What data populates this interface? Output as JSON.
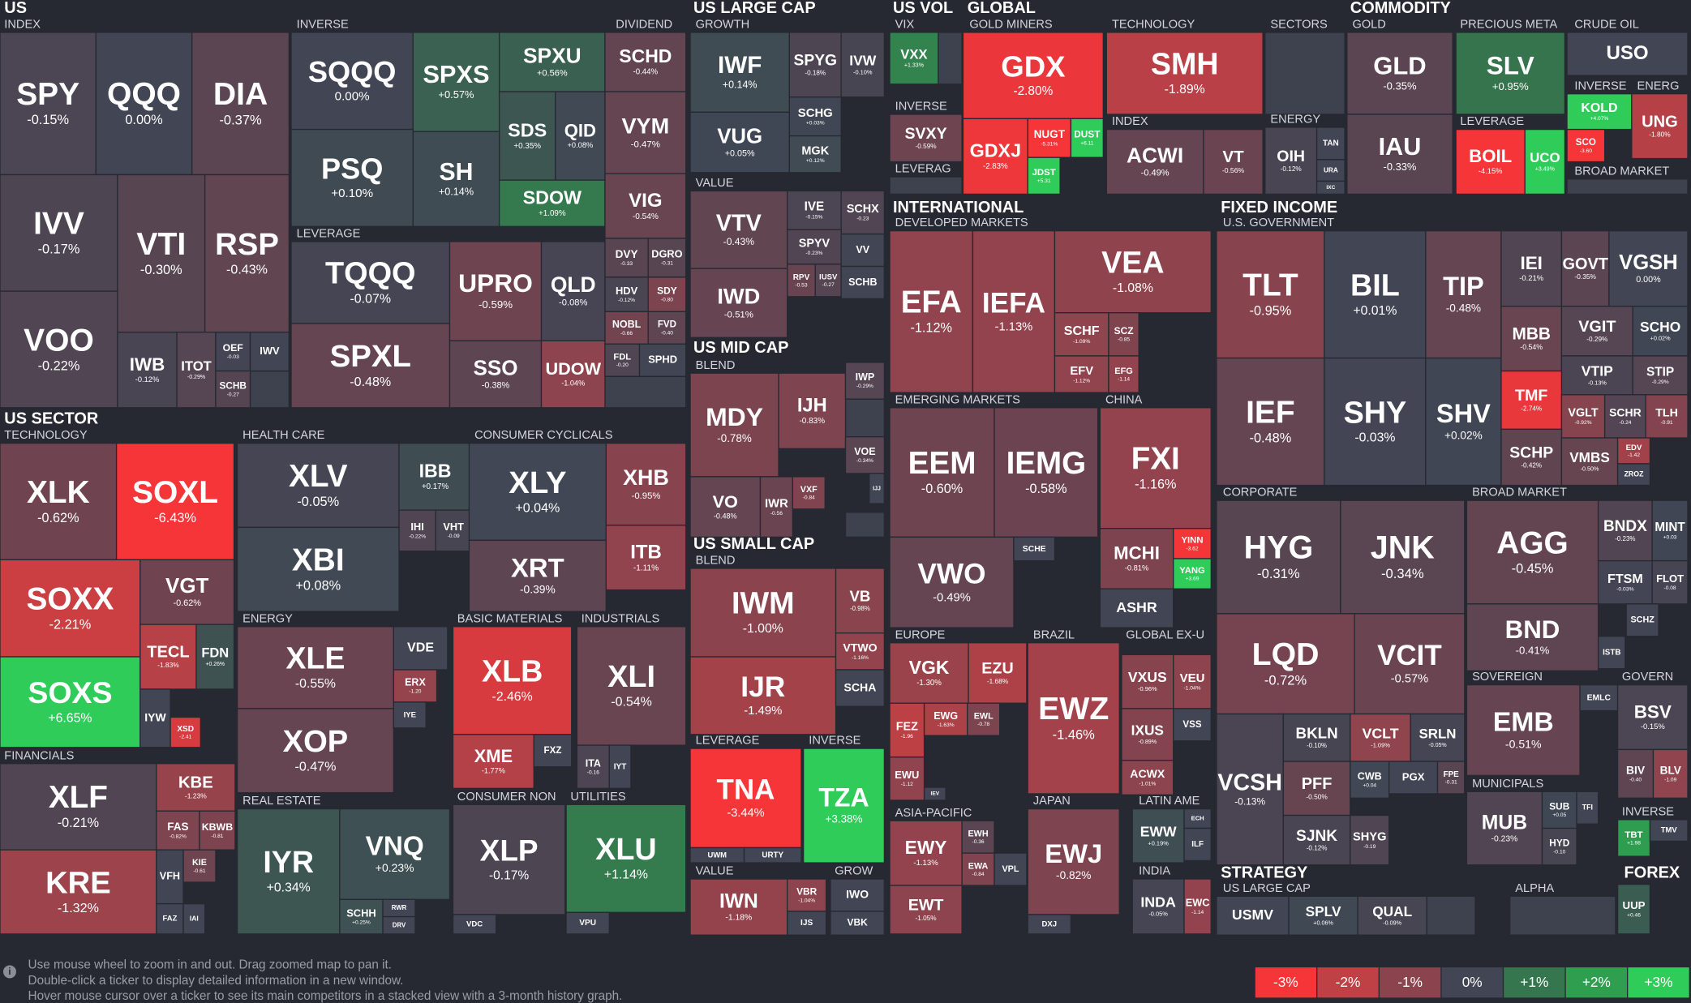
{
  "labels": [
    "US",
    "INDEX",
    "INVERSE",
    "LEVERAGE",
    "DIVIDEND",
    "US LARGE CAP",
    "GROWTH",
    "VALUE",
    "US MID CAP",
    "BLEND",
    "US SMALL CAP",
    "BLEND",
    "LEVERAGE",
    "INVERSE",
    "VALUE",
    "GROW",
    "US VOL",
    "VIX",
    "INVERSE",
    "LEVERAG",
    "GLOBAL",
    "GOLD MINERS",
    "TECHNOLOGY",
    "INDEX",
    "SECTORS",
    "ENERGY",
    "COMMODITY",
    "GOLD",
    "PRECIOUS META",
    "CRUDE OIL",
    "INVERSE",
    "ENERG",
    "LEVERAGE",
    "BROAD MARKET",
    "INTERNATIONAL",
    "DEVELOPED MARKETS",
    "EMERGING MARKETS",
    "CHINA",
    "EUROPE",
    "BRAZIL",
    "GLOBAL EX-U",
    "ASIA-PACIFIC",
    "JAPAN",
    "LATIN AME",
    "INDIA",
    "FIXED INCOME",
    "U.S. GOVERNMENT",
    "CORPORATE",
    "BROAD MARKET",
    "SOVEREIGN",
    "GOVERN",
    "MUNICIPALS",
    "INVERSE",
    "STRATEGY",
    "US LARGE CAP",
    "ALPHA",
    "FOREX",
    "US SECTOR",
    "TECHNOLOGY",
    "FINANCIALS",
    "HEALTH CARE",
    "ENERGY",
    "REAL ESTATE",
    "CONSUMER CYCLICALS",
    "BASIC MATERIALS",
    "INDUSTRIALS",
    "CONSUMER NON",
    "UTILITIES"
  ],
  "tiles": [
    {
      "ticker": "SPY",
      "change": "-0.15%"
    },
    {
      "ticker": "QQQ",
      "change": "0.00%"
    },
    {
      "ticker": "DIA",
      "change": "-0.37%"
    },
    {
      "ticker": "IVV",
      "change": "-0.17%"
    },
    {
      "ticker": "VTI",
      "change": "-0.30%"
    },
    {
      "ticker": "RSP",
      "change": "-0.43%"
    },
    {
      "ticker": "VOO",
      "change": "-0.22%"
    },
    {
      "ticker": "IWB",
      "change": "-0.12%"
    },
    {
      "ticker": "ITOT",
      "change": "-0.29%"
    },
    {
      "ticker": "OEF",
      "change": "-0.03"
    },
    {
      "ticker": "IWV"
    },
    {
      "ticker": "SCHB",
      "change": "-0.27"
    },
    {
      "ticker": "SQQQ",
      "change": "0.00%"
    },
    {
      "ticker": "SPXS",
      "change": "+0.57%"
    },
    {
      "ticker": "SPXU",
      "change": "+0.56%"
    },
    {
      "ticker": "SDS",
      "change": "+0.35%"
    },
    {
      "ticker": "QID",
      "change": "+0.08%"
    },
    {
      "ticker": "PSQ",
      "change": "+0.10%"
    },
    {
      "ticker": "SH",
      "change": "+0.14%"
    },
    {
      "ticker": "SDOW",
      "change": "+1.09%"
    },
    {
      "ticker": "TQQQ",
      "change": "-0.07%"
    },
    {
      "ticker": "SPXL",
      "change": "-0.48%"
    },
    {
      "ticker": "UPRO",
      "change": "-0.59%"
    },
    {
      "ticker": "QLD",
      "change": "-0.08%"
    },
    {
      "ticker": "SSO",
      "change": "-0.38%"
    },
    {
      "ticker": "UDOW",
      "change": "-1.04%"
    },
    {
      "ticker": "SCHD",
      "change": "-0.44%"
    },
    {
      "ticker": "VYM",
      "change": "-0.47%"
    },
    {
      "ticker": "VIG",
      "change": "-0.54%"
    },
    {
      "ticker": "DVY",
      "change": "-0.33"
    },
    {
      "ticker": "DGRO",
      "change": "-0.31"
    },
    {
      "ticker": "HDV",
      "change": "-0.12%"
    },
    {
      "ticker": "SDY",
      "change": "-0.80"
    },
    {
      "ticker": "NOBL",
      "change": "-0.66"
    },
    {
      "ticker": "FVD",
      "change": "-0.40"
    },
    {
      "ticker": "FDL",
      "change": "-0.20"
    },
    {
      "ticker": "SPHD"
    },
    {
      "ticker": "IWF",
      "change": "+0.14%"
    },
    {
      "ticker": "SPYG",
      "change": "-0.18%"
    },
    {
      "ticker": "IVW",
      "change": "-0.10%"
    },
    {
      "ticker": "VUG",
      "change": "+0.05%"
    },
    {
      "ticker": "SCHG",
      "change": "+0.03%"
    },
    {
      "ticker": "MGK",
      "change": "+0.12%"
    },
    {
      "ticker": "VTV",
      "change": "-0.43%"
    },
    {
      "ticker": "IVE",
      "change": "-0.15%"
    },
    {
      "ticker": "SCHX",
      "change": "-0.23"
    },
    {
      "ticker": "SPYV",
      "change": "-0.23%"
    },
    {
      "ticker": "VV"
    },
    {
      "ticker": "RPV",
      "change": "-0.53"
    },
    {
      "ticker": "IUSV",
      "change": "-0.27"
    },
    {
      "ticker": "SCHB"
    },
    {
      "ticker": "IWD",
      "change": "-0.51%"
    },
    {
      "ticker": "MDY",
      "change": "-0.78%"
    },
    {
      "ticker": "IJH",
      "change": "-0.83%"
    },
    {
      "ticker": "IWP",
      "change": "-0.29%"
    },
    {
      "ticker": "VO",
      "change": "-0.48%"
    },
    {
      "ticker": "IWR",
      "change": "-0.56"
    },
    {
      "ticker": "VXF",
      "change": "-0.84"
    },
    {
      "ticker": "VOE",
      "change": "-0.34%"
    },
    {
      "ticker": "IJJ"
    },
    {
      "ticker": "IWM",
      "change": "-1.00%"
    },
    {
      "ticker": "VB",
      "change": "-0.98%"
    },
    {
      "ticker": "IJR",
      "change": "-1.49%"
    },
    {
      "ticker": "VTWO",
      "change": "-1.16%"
    },
    {
      "ticker": "SCHA"
    },
    {
      "ticker": "TNA",
      "change": "-3.44%"
    },
    {
      "ticker": "UWM"
    },
    {
      "ticker": "URTY"
    },
    {
      "ticker": "TZA",
      "change": "+3.38%"
    },
    {
      "ticker": "IWN",
      "change": "-1.18%"
    },
    {
      "ticker": "VBR",
      "change": "-1.04%"
    },
    {
      "ticker": "IJS"
    },
    {
      "ticker": "IWO"
    },
    {
      "ticker": "VBK"
    },
    {
      "ticker": "VXX",
      "change": "+1.33%"
    },
    {
      "ticker": "SVXY",
      "change": "-0.59%"
    },
    {
      "ticker": "GDX",
      "change": "-2.80%"
    },
    {
      "ticker": "GDXJ",
      "change": "-2.83%"
    },
    {
      "ticker": "NUGT",
      "change": "-5.31%"
    },
    {
      "ticker": "DUST",
      "change": "+6.11"
    },
    {
      "ticker": "JDST",
      "change": "+5.31"
    },
    {
      "ticker": "SMH",
      "change": "-1.89%"
    },
    {
      "ticker": "ACWI",
      "change": "-0.49%"
    },
    {
      "ticker": "VT",
      "change": "-0.56%"
    },
    {
      "ticker": "OIH",
      "change": "-0.12%"
    },
    {
      "ticker": "TAN"
    },
    {
      "ticker": "URA"
    },
    {
      "ticker": "IXC"
    },
    {
      "ticker": "GLD",
      "change": "-0.35%"
    },
    {
      "ticker": "IAU",
      "change": "-0.33%"
    },
    {
      "ticker": "SLV",
      "change": "+0.95%"
    },
    {
      "ticker": "BOIL",
      "change": "-4.15%"
    },
    {
      "ticker": "UCO",
      "change": "+3.49%"
    },
    {
      "ticker": "USO"
    },
    {
      "ticker": "KOLD",
      "change": "+4.07%"
    },
    {
      "ticker": "UNG",
      "change": "-1.80%"
    },
    {
      "ticker": "SCO",
      "change": "-3.60"
    },
    {
      "ticker": "EFA",
      "change": "-1.12%"
    },
    {
      "ticker": "IEFA",
      "change": "-1.13%"
    },
    {
      "ticker": "VEA",
      "change": "-1.08%"
    },
    {
      "ticker": "SCHF",
      "change": "-1.09%"
    },
    {
      "ticker": "SCZ",
      "change": "-0.85"
    },
    {
      "ticker": "EFV",
      "change": "-1.12%"
    },
    {
      "ticker": "EFG",
      "change": "-1.14"
    },
    {
      "ticker": "EEM",
      "change": "-0.60%"
    },
    {
      "ticker": "IEMG",
      "change": "-0.58%"
    },
    {
      "ticker": "VWO",
      "change": "-0.49%"
    },
    {
      "ticker": "SCHE"
    },
    {
      "ticker": "FXI",
      "change": "-1.16%"
    },
    {
      "ticker": "MCHI",
      "change": "-0.81%"
    },
    {
      "ticker": "YINN",
      "change": "-3.62"
    },
    {
      "ticker": "YANG",
      "change": "+3.69"
    },
    {
      "ticker": "ASHR"
    },
    {
      "ticker": "VGK",
      "change": "-1.30%"
    },
    {
      "ticker": "EZU",
      "change": "-1.68%"
    },
    {
      "ticker": "FEZ",
      "change": "-1.96"
    },
    {
      "ticker": "EWG",
      "change": "-1.63%"
    },
    {
      "ticker": "EWL",
      "change": "-0.78"
    },
    {
      "ticker": "EWU",
      "change": "-1.12"
    },
    {
      "ticker": "IEV"
    },
    {
      "ticker": "EWZ",
      "change": "-1.46%"
    },
    {
      "ticker": "VXUS",
      "change": "-0.96%"
    },
    {
      "ticker": "VEU",
      "change": "-1.04%"
    },
    {
      "ticker": "IXUS",
      "change": "-0.89%"
    },
    {
      "ticker": "VSS"
    },
    {
      "ticker": "ACWX",
      "change": "-1.01%"
    },
    {
      "ticker": "EWY",
      "change": "-1.13%"
    },
    {
      "ticker": "EWT",
      "change": "-1.05%"
    },
    {
      "ticker": "EWH",
      "change": "-0.36"
    },
    {
      "ticker": "EWA",
      "change": "-0.84"
    },
    {
      "ticker": "VPL"
    },
    {
      "ticker": "EWJ",
      "change": "-0.82%"
    },
    {
      "ticker": "DXJ"
    },
    {
      "ticker": "EWW",
      "change": "+0.19%"
    },
    {
      "ticker": "ECH"
    },
    {
      "ticker": "ILF"
    },
    {
      "ticker": "INDA",
      "change": "-0.05%"
    },
    {
      "ticker": "EWC",
      "change": "-1.14"
    },
    {
      "ticker": "TLT",
      "change": "-0.95%"
    },
    {
      "ticker": "BIL",
      "change": "+0.01%"
    },
    {
      "ticker": "TIP",
      "change": "-0.48%"
    },
    {
      "ticker": "IEF",
      "change": "-0.48%"
    },
    {
      "ticker": "SHY",
      "change": "-0.03%"
    },
    {
      "ticker": "SHV",
      "change": "+0.02%"
    },
    {
      "ticker": "IEI",
      "change": "-0.21%"
    },
    {
      "ticker": "GOVT",
      "change": "-0.35%"
    },
    {
      "ticker": "VGSH",
      "change": "0.00%"
    },
    {
      "ticker": "MBB",
      "change": "-0.54%"
    },
    {
      "ticker": "VGIT",
      "change": "-0.29%"
    },
    {
      "ticker": "SCHO",
      "change": "+0.02%"
    },
    {
      "ticker": "VTIP",
      "change": "-0.13%"
    },
    {
      "ticker": "STIP",
      "change": "-0.29%"
    },
    {
      "ticker": "TMF",
      "change": "-2.74%"
    },
    {
      "ticker": "VGLT",
      "change": "-0.92%"
    },
    {
      "ticker": "SCHR",
      "change": "-0.24"
    },
    {
      "ticker": "TLH",
      "change": "-0.91"
    },
    {
      "ticker": "SCHP",
      "change": "-0.42%"
    },
    {
      "ticker": "VMBS",
      "change": "-0.50%"
    },
    {
      "ticker": "EDV",
      "change": "-1.42"
    },
    {
      "ticker": "ZROZ"
    },
    {
      "ticker": "HYG",
      "change": "-0.31%"
    },
    {
      "ticker": "JNK",
      "change": "-0.34%"
    },
    {
      "ticker": "LQD",
      "change": "-0.72%"
    },
    {
      "ticker": "VCIT",
      "change": "-0.57%"
    },
    {
      "ticker": "VCSH",
      "change": "-0.13%"
    },
    {
      "ticker": "BKLN",
      "change": "-0.10%"
    },
    {
      "ticker": "VCLT",
      "change": "-1.09%"
    },
    {
      "ticker": "SRLN",
      "change": "-0.05%"
    },
    {
      "ticker": "PFF",
      "change": "-0.50%"
    },
    {
      "ticker": "CWB",
      "change": "+0.04"
    },
    {
      "ticker": "PGX"
    },
    {
      "ticker": "FPE",
      "change": "-0.31"
    },
    {
      "ticker": "SJNK",
      "change": "-0.12%"
    },
    {
      "ticker": "SHYG",
      "change": "-0.19"
    },
    {
      "ticker": "AGG",
      "change": "-0.45%"
    },
    {
      "ticker": "BNDX",
      "change": "-0.23%"
    },
    {
      "ticker": "MINT",
      "change": "+0.03"
    },
    {
      "ticker": "FTSM",
      "change": "-0.03%"
    },
    {
      "ticker": "FLOT",
      "change": "-0.08"
    },
    {
      "ticker": "BND",
      "change": "-0.41%"
    },
    {
      "ticker": "SCHZ"
    },
    {
      "ticker": "ISTB"
    },
    {
      "ticker": "EMB",
      "change": "-0.51%"
    },
    {
      "ticker": "EMLC"
    },
    {
      "ticker": "BSV",
      "change": "-0.15%"
    },
    {
      "ticker": "BIV",
      "change": "-0.40"
    },
    {
      "ticker": "BLV",
      "change": "-1.09"
    },
    {
      "ticker": "TBT",
      "change": "+1.98"
    },
    {
      "ticker": "TMV"
    },
    {
      "ticker": "MUB",
      "change": "-0.23%"
    },
    {
      "ticker": "SUB",
      "change": "+0.05"
    },
    {
      "ticker": "TFI"
    },
    {
      "ticker": "HYD",
      "change": "-0.10"
    },
    {
      "ticker": "USMV"
    },
    {
      "ticker": "SPLV",
      "change": "+0.06%"
    },
    {
      "ticker": "QUAL",
      "change": "-0.09%"
    },
    {
      "ticker": "UUP",
      "change": "+0.46"
    },
    {
      "ticker": "XLK",
      "change": "-0.62%"
    },
    {
      "ticker": "SOXL",
      "change": "-6.43%"
    },
    {
      "ticker": "SOXX",
      "change": "-2.21%"
    },
    {
      "ticker": "SOXS",
      "change": "+6.65%"
    },
    {
      "ticker": "VGT",
      "change": "-0.62%"
    },
    {
      "ticker": "TECL",
      "change": "-1.83%"
    },
    {
      "ticker": "FDN",
      "change": "+0.26%"
    },
    {
      "ticker": "IYW"
    },
    {
      "ticker": "XSD",
      "change": "-2.41"
    },
    {
      "ticker": "XLF",
      "change": "-0.21%"
    },
    {
      "ticker": "KRE",
      "change": "-1.32%"
    },
    {
      "ticker": "KBE",
      "change": "-1.23%"
    },
    {
      "ticker": "FAS",
      "change": "-0.82%"
    },
    {
      "ticker": "KBWB",
      "change": "-0.81"
    },
    {
      "ticker": "VFH"
    },
    {
      "ticker": "KIE",
      "change": "-0.61"
    },
    {
      "ticker": "FAZ"
    },
    {
      "ticker": "IAI"
    },
    {
      "ticker": "XLV",
      "change": "-0.05%"
    },
    {
      "ticker": "IBB",
      "change": "+0.17%"
    },
    {
      "ticker": "IHI",
      "change": "-0.22%"
    },
    {
      "ticker": "VHT",
      "change": "-0.09"
    },
    {
      "ticker": "XBI",
      "change": "+0.08%"
    },
    {
      "ticker": "XLE",
      "change": "-0.55%"
    },
    {
      "ticker": "XOP",
      "change": "-0.47%"
    },
    {
      "ticker": "VDE"
    },
    {
      "ticker": "ERX",
      "change": "-1.20"
    },
    {
      "ticker": "IYE"
    },
    {
      "ticker": "IYR",
      "change": "+0.34%"
    },
    {
      "ticker": "VNQ",
      "change": "+0.23%"
    },
    {
      "ticker": "SCHH",
      "change": "+0.25%"
    },
    {
      "ticker": "RWR"
    },
    {
      "ticker": "DRV"
    },
    {
      "ticker": "XLY",
      "change": "+0.04%"
    },
    {
      "ticker": "XHB",
      "change": "-0.95%"
    },
    {
      "ticker": "XRT",
      "change": "-0.39%"
    },
    {
      "ticker": "ITB",
      "change": "-1.11%"
    },
    {
      "ticker": "XLB",
      "change": "-2.46%"
    },
    {
      "ticker": "XME",
      "change": "-1.77%"
    },
    {
      "ticker": "FXZ"
    },
    {
      "ticker": "XLI",
      "change": "-0.54%"
    },
    {
      "ticker": "ITA",
      "change": "-0.16"
    },
    {
      "ticker": "IYT"
    },
    {
      "ticker": "XLP",
      "change": "-0.17%"
    },
    {
      "ticker": "VDC"
    },
    {
      "ticker": "XLU",
      "change": "+1.14%"
    },
    {
      "ticker": "VPU"
    }
  ],
  "help": [
    "Use mouse wheel to zoom in and out. Drag zoomed map to pan it.",
    "Double-click a ticker to display detailed information in a new window.",
    "Hover mouse cursor over a ticker to see its main competitors in a stacked view with a 3-month history graph."
  ],
  "legend": [
    "-3%",
    "-2%",
    "-1%",
    "0%",
    "+1%",
    "+2%",
    "+3%"
  ]
}
